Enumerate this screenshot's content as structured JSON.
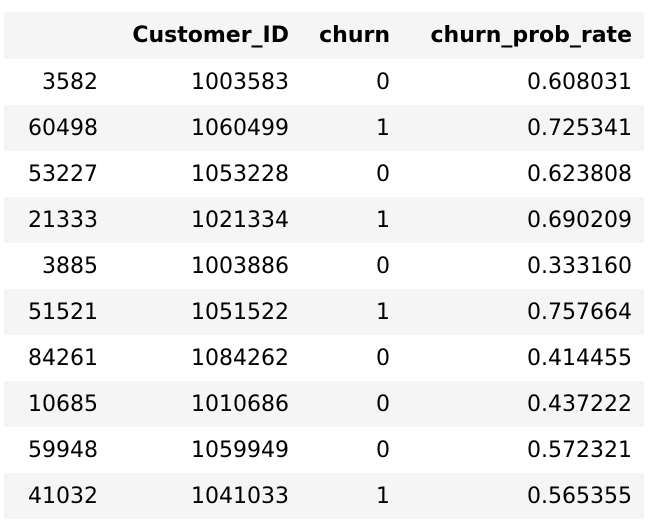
{
  "table": {
    "columns": [
      "",
      "Customer_ID",
      "churn",
      "churn_prob_rate"
    ],
    "rows": [
      [
        "3582",
        "1003583",
        "0",
        "0.608031"
      ],
      [
        "60498",
        "1060499",
        "1",
        "0.725341"
      ],
      [
        "53227",
        "1053228",
        "0",
        "0.623808"
      ],
      [
        "21333",
        "1021334",
        "1",
        "0.690209"
      ],
      [
        "3885",
        "1003886",
        "0",
        "0.333160"
      ],
      [
        "51521",
        "1051522",
        "1",
        "0.757664"
      ],
      [
        "84261",
        "1084262",
        "0",
        "0.414455"
      ],
      [
        "10685",
        "1010686",
        "0",
        "0.437222"
      ],
      [
        "59948",
        "1059949",
        "0",
        "0.572321"
      ],
      [
        "41032",
        "1041033",
        "1",
        "0.565355"
      ]
    ]
  },
  "colors": {
    "header_background": "#f5f5f5",
    "stripe_background": "#f5f5f5",
    "text": "#000000"
  }
}
